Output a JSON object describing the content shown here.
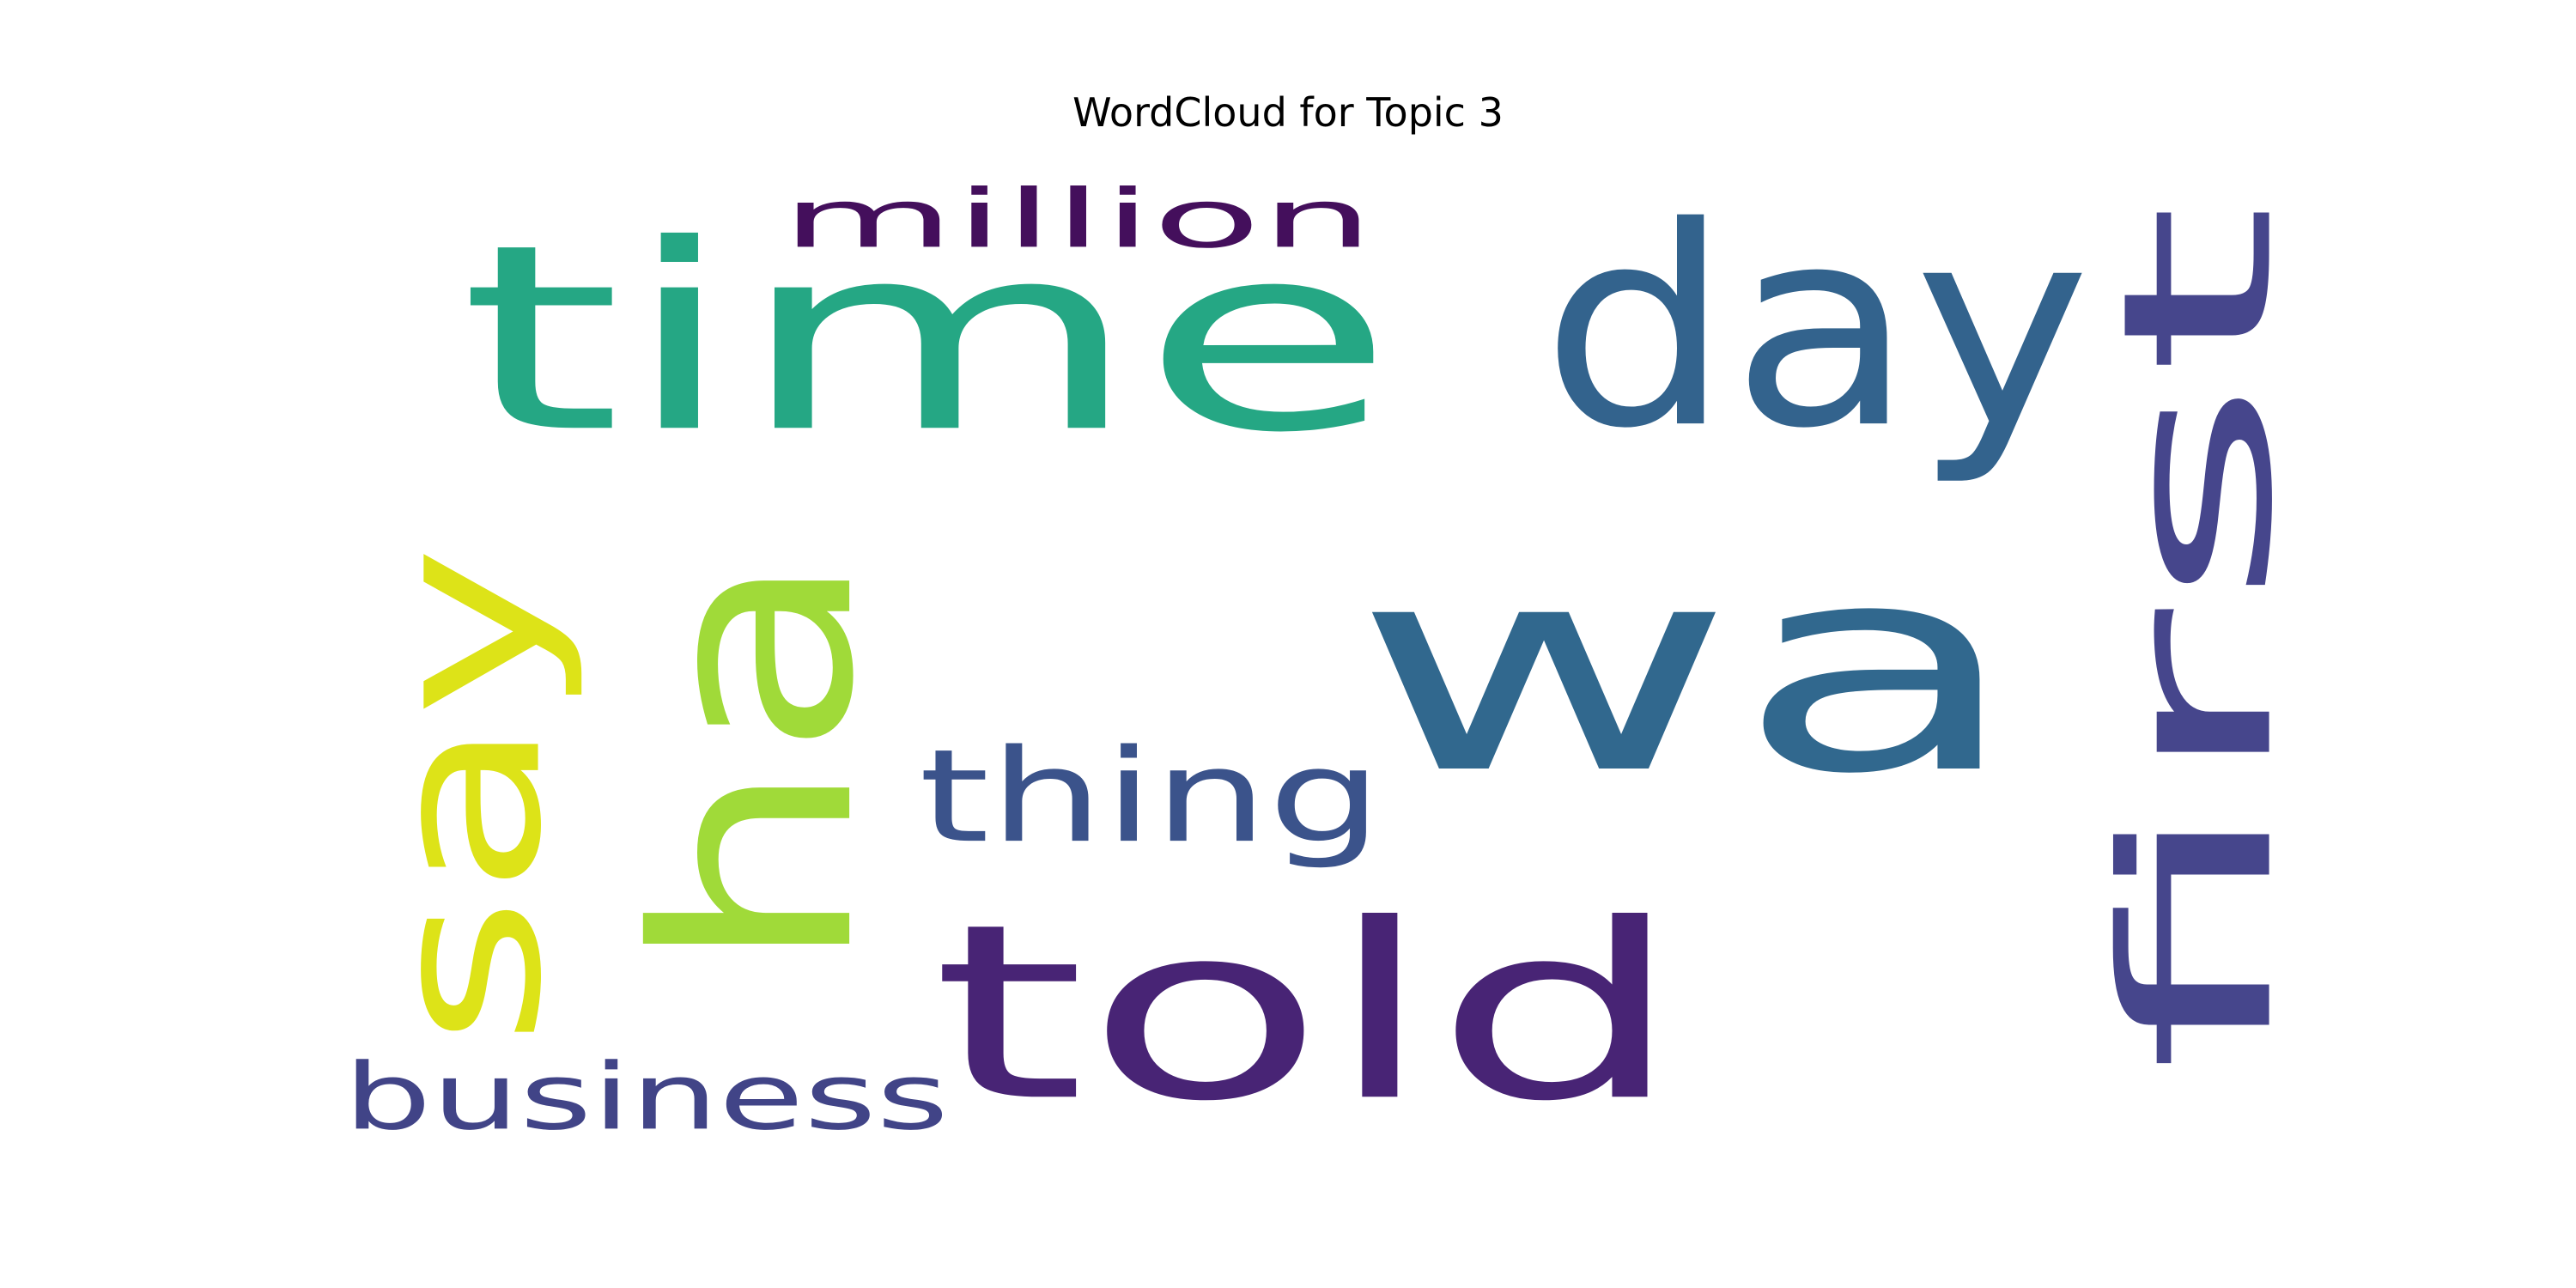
{
  "chart_data": {
    "type": "wordcloud",
    "title": "WordCloud for Topic 3",
    "words": [
      {
        "text": "wa",
        "color": "#31688e",
        "rotated": false
      },
      {
        "text": "time",
        "color": "#25a784",
        "rotated": false
      },
      {
        "text": "told",
        "color": "#482475",
        "rotated": false
      },
      {
        "text": "ha",
        "color": "#a0da39",
        "rotated": true
      },
      {
        "text": "first",
        "color": "#46468c",
        "rotated": true
      },
      {
        "text": "day",
        "color": "#33638d",
        "rotated": false
      },
      {
        "text": "say",
        "color": "#dde318",
        "rotated": true
      },
      {
        "text": "thing",
        "color": "#3b538b",
        "rotated": false
      },
      {
        "text": "business",
        "color": "#414487",
        "rotated": false
      },
      {
        "text": "million",
        "color": "#440f5c",
        "rotated": false
      }
    ]
  }
}
